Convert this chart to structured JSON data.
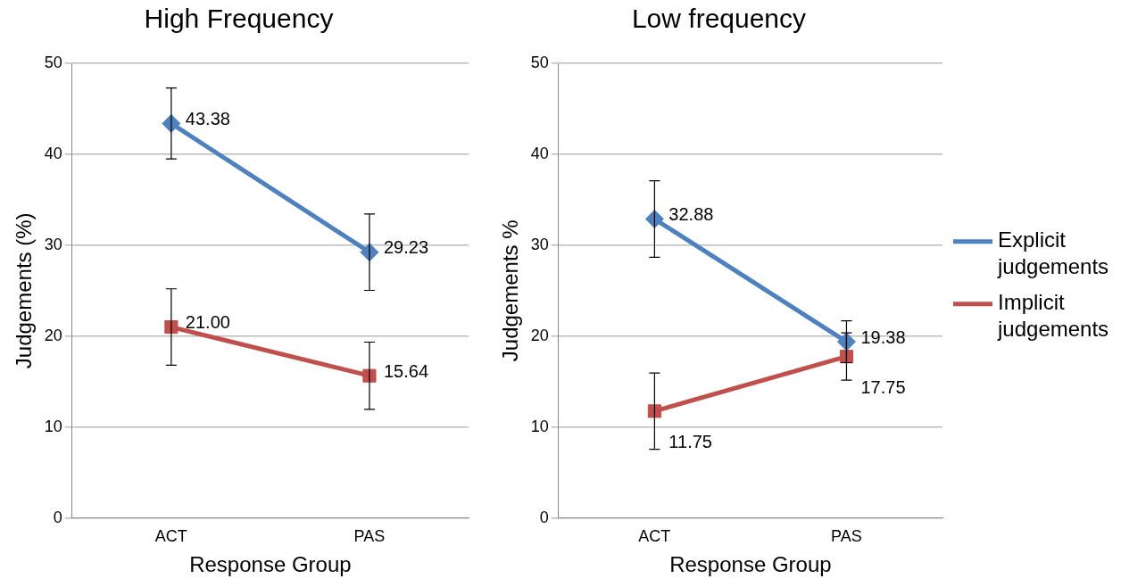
{
  "chart_data": [
    {
      "type": "line",
      "title": "High Frequency",
      "xlabel": "Response Group",
      "ylabel": "Judgements (%)",
      "categories": [
        "ACT",
        "PAS"
      ],
      "ylim": [
        0,
        50
      ],
      "yticks": [
        0,
        10,
        20,
        30,
        40,
        50
      ],
      "grid": "y",
      "legend": false,
      "series": [
        {
          "color": "#4f81bd",
          "marker": "diamond",
          "values": [
            43.38,
            29.23
          ],
          "errors": [
            3.9,
            4.2
          ],
          "value_labels": [
            "43.38",
            "29.23"
          ]
        },
        {
          "color": "#c0504d",
          "marker": "square",
          "values": [
            21.0,
            15.64
          ],
          "errors": [
            4.2,
            3.7
          ],
          "value_labels": [
            "21.00",
            "15.64"
          ]
        }
      ]
    },
    {
      "type": "line",
      "title": "Low frequency",
      "xlabel": "Response Group",
      "ylabel": "Judgements %",
      "categories": [
        "ACT",
        "PAS"
      ],
      "ylim": [
        0,
        50
      ],
      "yticks": [
        0,
        10,
        20,
        30,
        40,
        50
      ],
      "grid": "y",
      "legend": "right",
      "series": [
        {
          "name": "Explicit judgements",
          "color": "#4f81bd",
          "marker": "diamond",
          "values": [
            32.88,
            19.38
          ],
          "errors": [
            4.2,
            2.3
          ],
          "value_labels": [
            "32.88",
            "19.38"
          ]
        },
        {
          "name": "Implicit judgements",
          "color": "#c0504d",
          "marker": "square",
          "values": [
            11.75,
            17.75
          ],
          "errors": [
            4.2,
            2.6
          ],
          "value_labels": [
            "11.75",
            "17.75"
          ]
        }
      ]
    }
  ]
}
